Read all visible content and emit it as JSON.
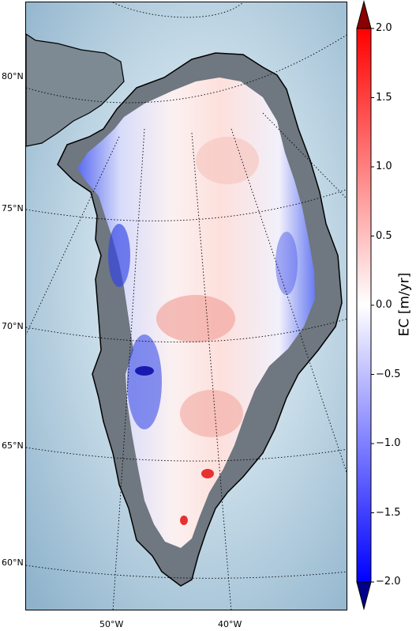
{
  "map": {
    "latitude_labels": [
      "80°N",
      "75°N",
      "70°N",
      "65°N",
      "60°N"
    ],
    "longitude_labels": [
      "50°W",
      "40°W"
    ],
    "ocean_color": "#bcd6e6",
    "coast_color": "#000000",
    "graticule": "dotted"
  },
  "colorbar": {
    "label": "EC [m/yr]",
    "ticks": [
      "2.0",
      "1.5",
      "1.0",
      "0.5",
      "0.0",
      "−0.5",
      "−1.0",
      "−1.5",
      "−2.0"
    ],
    "range": [
      -2.0,
      2.0
    ],
    "extend": "both",
    "colormap": "bwr",
    "color_min": "#0000ff",
    "color_mid": "#ffffff",
    "color_max": "#ff0000",
    "color_under": "#00008b",
    "color_over": "#8b0000"
  }
}
